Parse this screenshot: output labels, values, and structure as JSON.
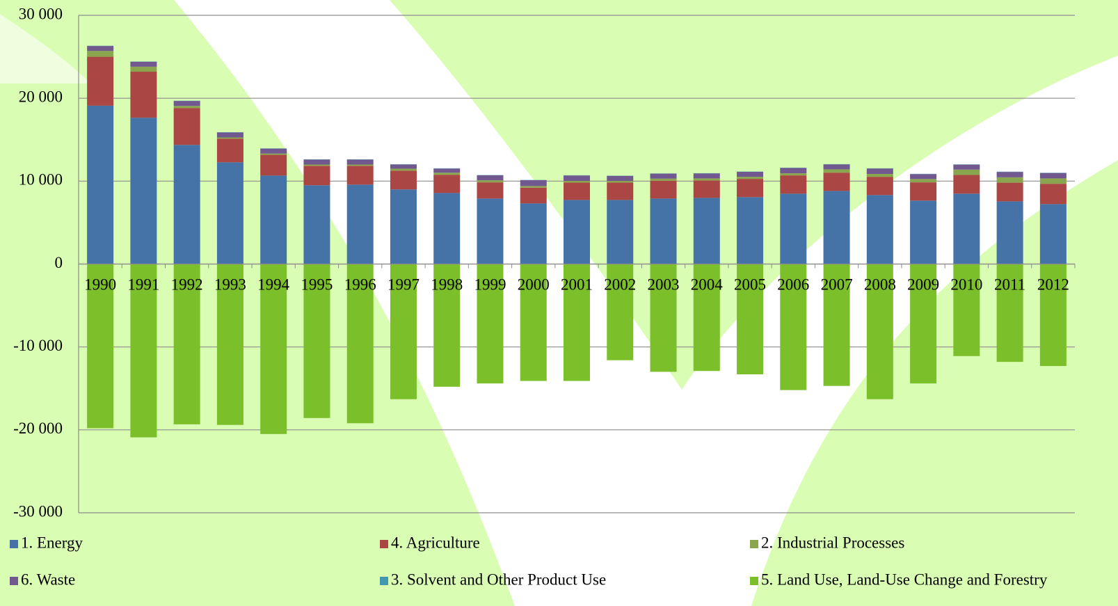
{
  "chart_data": {
    "type": "bar",
    "stacked": true,
    "categories": [
      "1990",
      "1991",
      "1992",
      "1993",
      "1994",
      "1995",
      "1996",
      "1997",
      "1998",
      "1999",
      "2000",
      "2001",
      "2002",
      "2003",
      "2004",
      "2005",
      "2006",
      "2007",
      "2008",
      "2009",
      "2010",
      "2011",
      "2012"
    ],
    "series": [
      {
        "name": "1.  Energy",
        "color": "#4572a7",
        "values": [
          19100,
          17650,
          14370,
          12270,
          10670,
          9500,
          9580,
          9000,
          8570,
          7900,
          7310,
          7730,
          7730,
          7900,
          7980,
          8070,
          8490,
          8820,
          8320,
          7650,
          8490,
          7560,
          7230
        ]
      },
      {
        "name": "4.  Agriculture",
        "color": "#aa4643",
        "values": [
          5900,
          5550,
          4450,
          2850,
          2500,
          2350,
          2270,
          2250,
          2200,
          1950,
          1900,
          2100,
          2100,
          2150,
          2100,
          2200,
          2200,
          2200,
          2200,
          2200,
          2250,
          2250,
          2450
        ]
      },
      {
        "name": "2.  Industrial Processes",
        "color": "#89a54e",
        "values": [
          700,
          600,
          250,
          150,
          150,
          150,
          150,
          250,
          250,
          250,
          200,
          200,
          200,
          250,
          250,
          250,
          250,
          400,
          350,
          400,
          650,
          650,
          650
        ]
      },
      {
        "name": "6.  Waste",
        "color": "#71588f",
        "values": [
          600,
          600,
          600,
          600,
          600,
          600,
          600,
          500,
          500,
          600,
          700,
          650,
          600,
          600,
          600,
          600,
          650,
          600,
          650,
          600,
          600,
          650,
          650
        ]
      },
      {
        "name": "3.  Solvent and Other Product Use",
        "color": "#4198af",
        "values": [
          30,
          30,
          30,
          30,
          30,
          30,
          30,
          30,
          30,
          30,
          30,
          30,
          30,
          30,
          30,
          30,
          30,
          30,
          30,
          30,
          30,
          30,
          30
        ]
      },
      {
        "name": "5.  Land Use, Land-Use Change and Forestry",
        "color": "#7bbf2a",
        "values": [
          -19800,
          -20900,
          -19330,
          -19400,
          -20500,
          -18570,
          -19200,
          -16300,
          -14800,
          -14400,
          -14100,
          -14100,
          -11600,
          -13000,
          -12900,
          -13300,
          -15200,
          -14700,
          -16300,
          -14400,
          -11100,
          -11800,
          -12300
        ]
      }
    ],
    "ylim": [
      -30000,
      30000
    ],
    "yticks": [
      {
        "value": -30000,
        "label": "-30 000"
      },
      {
        "value": -20000,
        "label": "-20 000"
      },
      {
        "value": -10000,
        "label": "-10 000"
      },
      0,
      {
        "value": 10000,
        "label": "10 000"
      },
      {
        "value": 20000,
        "label": "20 000"
      },
      {
        "value": 30000,
        "label": "30 000"
      }
    ],
    "grid": true,
    "legend": "bottom"
  }
}
